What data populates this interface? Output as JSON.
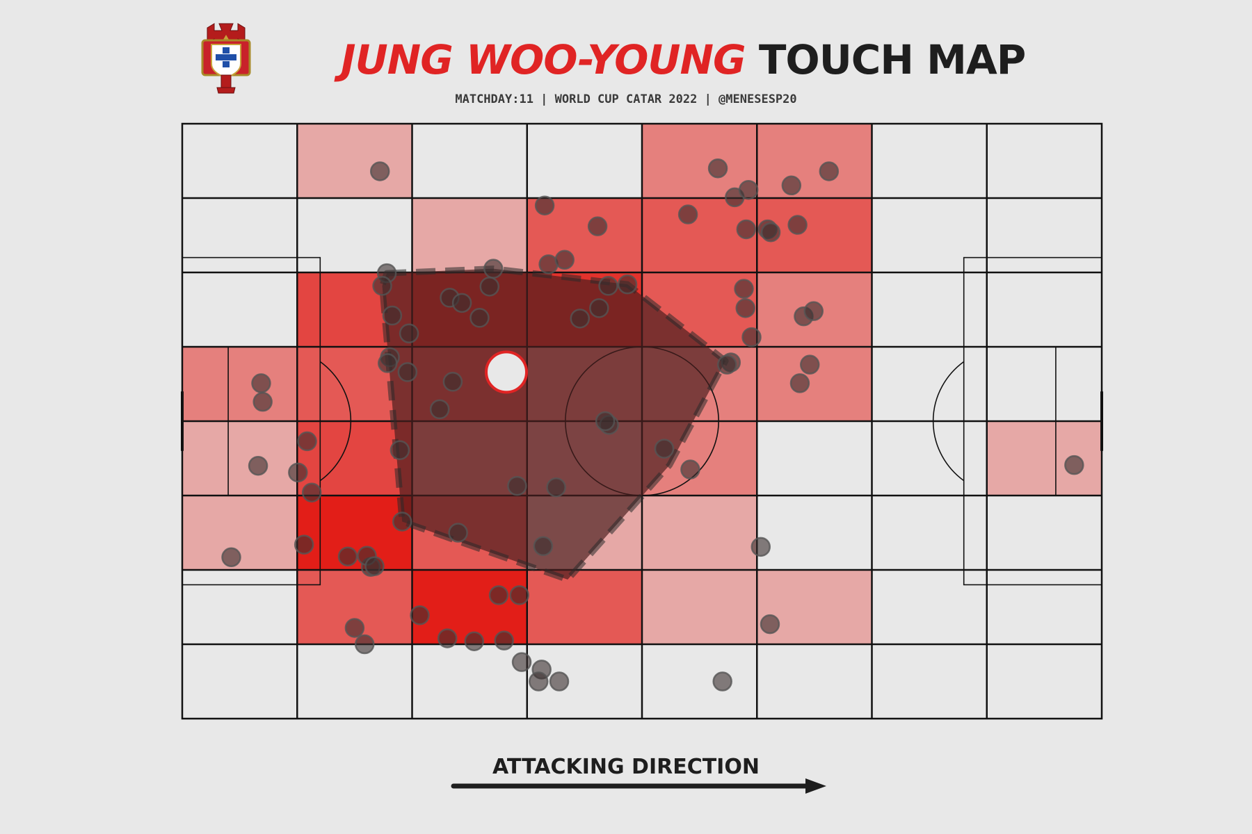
{
  "header": {
    "title_name": "JUNG WOO-YOUNG",
    "title_rest": "TOUCH MAP",
    "subtitle": "MATCHDAY:11 | WORLD CUP CATAR 2022 | @MENESESP20"
  },
  "footer": {
    "direction_label": "ATTACKING DIRECTION"
  },
  "colors": {
    "background": "#e8e8e8",
    "accent_red": "#e02424",
    "text_dark": "#1e1e1e",
    "touch_fill": "#3a2f2f",
    "hull_fill": "#4a1e1e"
  },
  "icons": {
    "crest": "portuguese-federation-crest-icon"
  },
  "chart_data": {
    "type": "heatmap",
    "pitch": {
      "length": 120,
      "width": 80
    },
    "grid": {
      "columns": 8,
      "rows": 8
    },
    "heatmap_counts": [
      [
        0,
        1,
        0,
        0,
        3,
        3,
        0,
        0
      ],
      [
        0,
        0,
        1,
        5,
        5,
        5,
        0,
        0
      ],
      [
        0,
        6,
        7,
        7,
        5,
        3,
        0,
        0
      ],
      [
        3,
        5,
        5,
        3,
        3,
        3,
        0,
        0
      ],
      [
        1,
        6,
        3,
        2,
        3,
        0,
        0,
        1
      ],
      [
        1,
        8,
        5,
        1,
        1,
        0,
        0,
        0
      ],
      [
        0,
        5,
        8,
        5,
        1,
        1,
        0,
        0
      ],
      [
        0,
        0,
        0,
        0,
        0,
        0,
        0,
        0
      ]
    ],
    "touches": [
      [
        25.8,
        6.4
      ],
      [
        69.9,
        6.0
      ],
      [
        72.1,
        9.9
      ],
      [
        73.9,
        8.9
      ],
      [
        79.5,
        8.3
      ],
      [
        84.4,
        6.4
      ],
      [
        47.3,
        11.0
      ],
      [
        54.2,
        13.8
      ],
      [
        66.0,
        12.2
      ],
      [
        73.6,
        14.2
      ],
      [
        76.4,
        14.2
      ],
      [
        76.8,
        14.6
      ],
      [
        80.3,
        13.6
      ],
      [
        47.8,
        18.9
      ],
      [
        49.9,
        18.3
      ],
      [
        40.6,
        19.5
      ],
      [
        26.7,
        20.1
      ],
      [
        26.1,
        21.8
      ],
      [
        40.1,
        21.9
      ],
      [
        55.6,
        21.8
      ],
      [
        58.1,
        21.6
      ],
      [
        73.3,
        22.2
      ],
      [
        34.9,
        23.4
      ],
      [
        36.5,
        24.1
      ],
      [
        54.4,
        24.8
      ],
      [
        73.5,
        24.8
      ],
      [
        81.1,
        25.9
      ],
      [
        82.4,
        25.2
      ],
      [
        27.4,
        25.8
      ],
      [
        38.8,
        26.1
      ],
      [
        51.9,
        26.2
      ],
      [
        29.6,
        28.2
      ],
      [
        74.3,
        28.7
      ],
      [
        27.1,
        31.4
      ],
      [
        26.8,
        32.2
      ],
      [
        71.6,
        32.1
      ],
      [
        71.1,
        32.4
      ],
      [
        81.9,
        32.4
      ],
      [
        29.4,
        33.4
      ],
      [
        35.3,
        34.7
      ],
      [
        80.6,
        34.9
      ],
      [
        10.3,
        34.9
      ],
      [
        10.5,
        37.4
      ],
      [
        33.6,
        38.4
      ],
      [
        55.7,
        40.5
      ],
      [
        55.2,
        40.0
      ],
      [
        62.9,
        43.7
      ],
      [
        16.3,
        42.7
      ],
      [
        28.4,
        43.9
      ],
      [
        9.9,
        46.0
      ],
      [
        15.1,
        46.9
      ],
      [
        66.3,
        46.5
      ],
      [
        43.7,
        48.7
      ],
      [
        48.8,
        48.9
      ],
      [
        116.4,
        45.9
      ],
      [
        16.9,
        49.6
      ],
      [
        28.7,
        53.5
      ],
      [
        36.0,
        55.0
      ],
      [
        15.9,
        56.6
      ],
      [
        47.1,
        56.8
      ],
      [
        75.5,
        56.9
      ],
      [
        6.4,
        58.3
      ],
      [
        21.6,
        58.2
      ],
      [
        24.6,
        59.6
      ],
      [
        24.1,
        58.1
      ],
      [
        25.1,
        59.5
      ],
      [
        44.0,
        63.4
      ],
      [
        41.3,
        63.4
      ],
      [
        22.5,
        67.8
      ],
      [
        31.0,
        66.1
      ],
      [
        23.8,
        70.0
      ],
      [
        34.6,
        69.2
      ],
      [
        38.1,
        69.6
      ],
      [
        42.0,
        69.5
      ],
      [
        44.3,
        72.4
      ],
      [
        46.9,
        73.4
      ],
      [
        46.5,
        75.0
      ],
      [
        49.2,
        75.0
      ],
      [
        76.7,
        67.3
      ],
      [
        70.5,
        75.0
      ]
    ],
    "average_position": [
      42.3,
      33.4
    ],
    "hull": [
      [
        26.7,
        20.1
      ],
      [
        40.6,
        19.5
      ],
      [
        58.1,
        21.6
      ],
      [
        70.9,
        31.9
      ],
      [
        63.6,
        45.9
      ],
      [
        50.3,
        61.3
      ],
      [
        28.7,
        53.5
      ],
      [
        26.1,
        21.8
      ]
    ]
  }
}
